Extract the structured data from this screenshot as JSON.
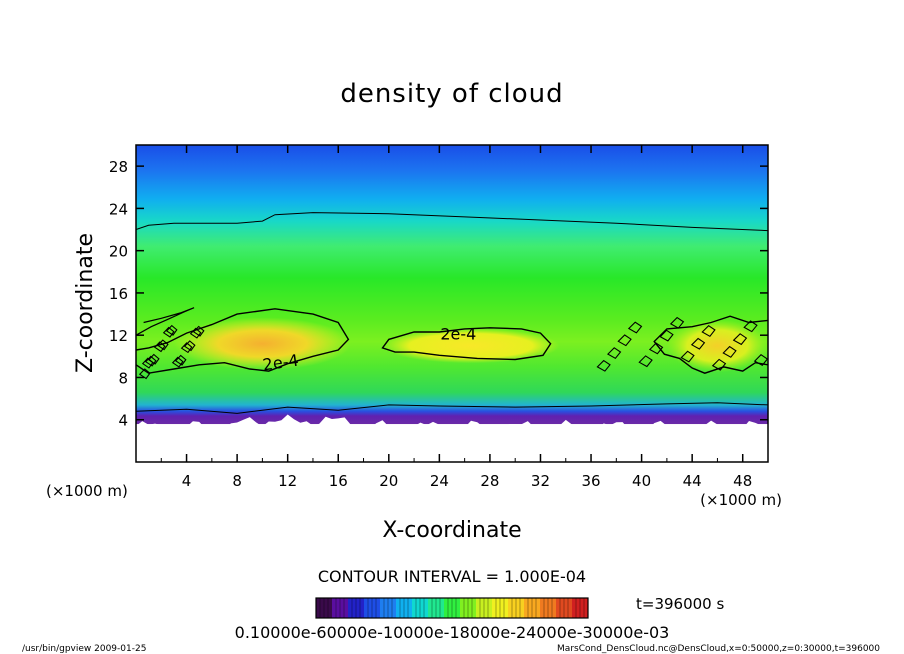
{
  "chart_data": {
    "type": "heatmap",
    "title": "density of cloud",
    "xlabel": "X-coordinate",
    "ylabel": "Z-coordinate",
    "x_unit": "(×1000 m)",
    "y_unit": "(×1000 m)",
    "xlim": [
      0,
      50
    ],
    "ylim": [
      0,
      30
    ],
    "x_ticks": [
      "4",
      "8",
      "12",
      "16",
      "20",
      "24",
      "28",
      "32",
      "36",
      "40",
      "44",
      "48"
    ],
    "y_ticks": [
      "4",
      "8",
      "12",
      "16",
      "20",
      "24",
      "28"
    ],
    "contour_labels": [
      "2e-4",
      "2e-4"
    ],
    "contour_interval_text": "CONTOUR INTERVAL = 1.000E-04",
    "colorbar": {
      "ticks_text": "0.10000e-60000e-10000e-18000e-24000e-30000e-03",
      "colors": [
        "#3a0a4a",
        "#5a0ea0",
        "#2222c8",
        "#1e4ee6",
        "#1e7ef0",
        "#10b0f0",
        "#10d8d0",
        "#20e890",
        "#30f040",
        "#80f020",
        "#c8f020",
        "#f0f020",
        "#f8d020",
        "#f8a820",
        "#f07a20",
        "#e04a20",
        "#d02020"
      ]
    },
    "time_text": "t=396000 s"
  },
  "footer": {
    "left": "/usr/bin/gpview   2009-01-25",
    "right": "MarsCond_DensCloud.nc@DensCloud,x=0:50000,z=0:30000,t=396000"
  }
}
